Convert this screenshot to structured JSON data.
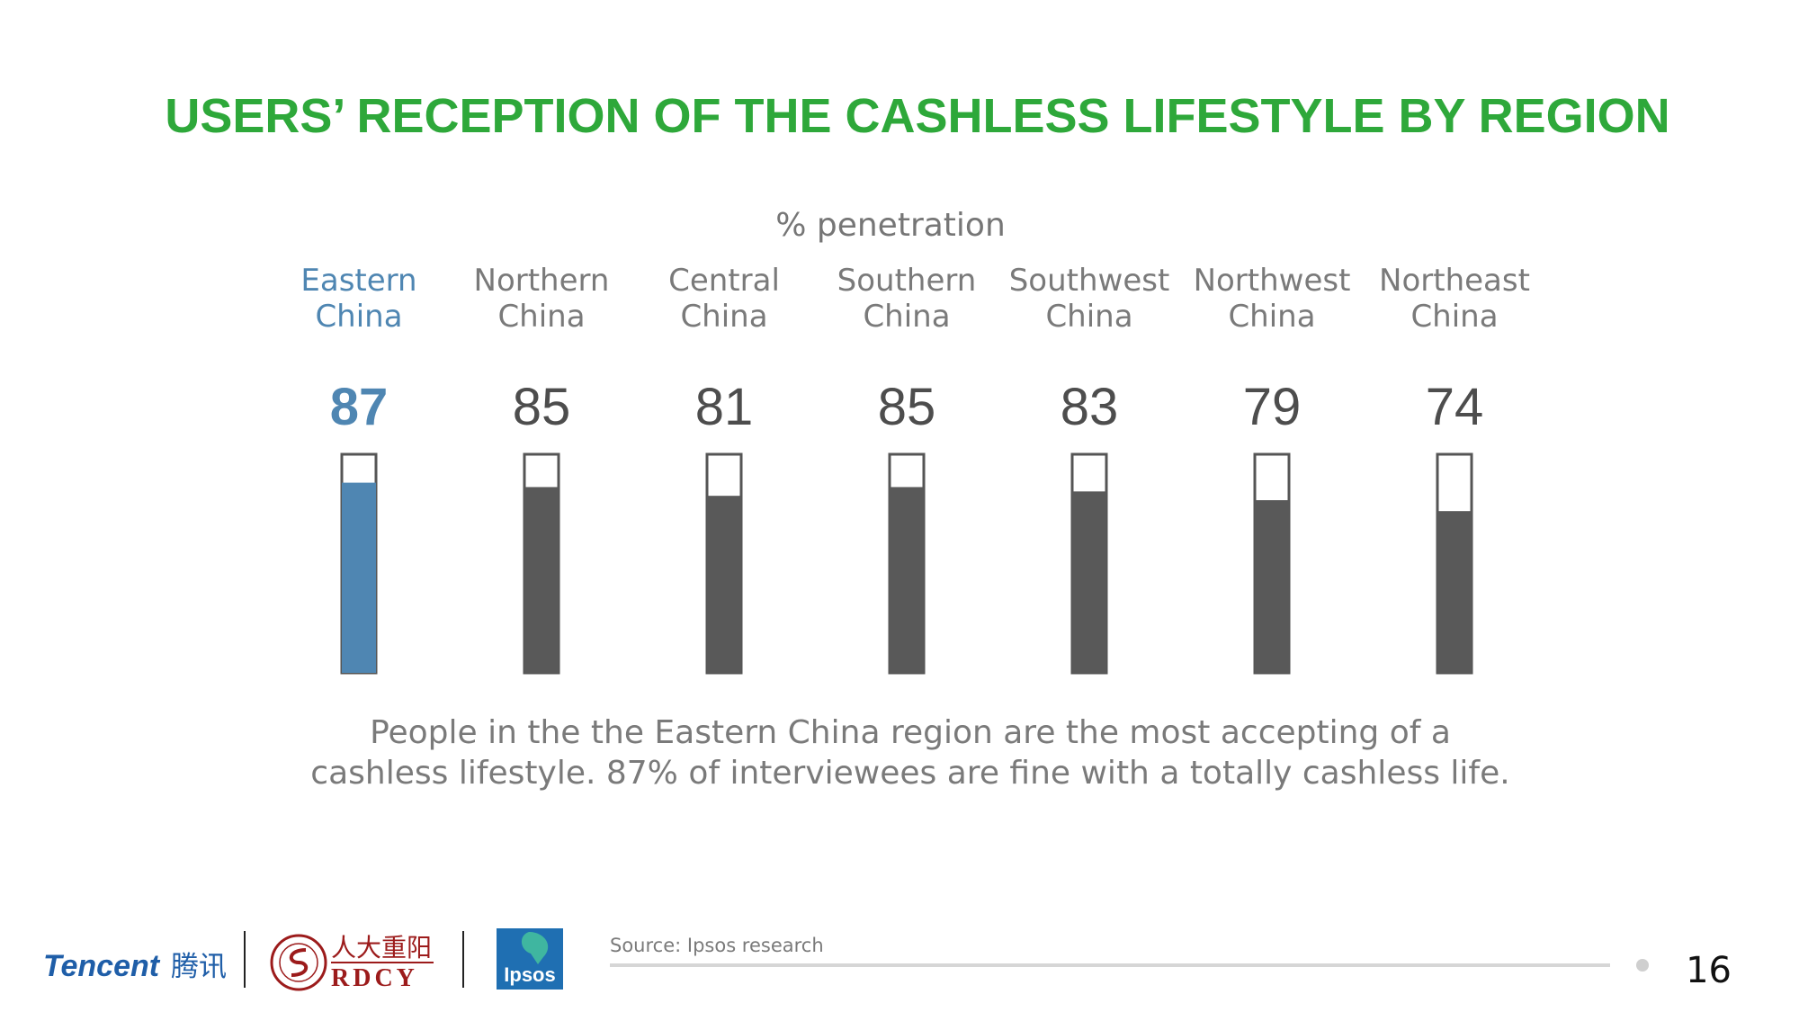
{
  "chart_data": {
    "type": "bar",
    "title": "USERS’ RECEPTION OF THE CASHLESS LIFESTYLE BY REGION",
    "subtitle": "% penetration",
    "categories": [
      [
        "Eastern",
        "China"
      ],
      [
        "Northern",
        "China"
      ],
      [
        "Central",
        "China"
      ],
      [
        "Southern",
        "China"
      ],
      [
        "Southwest",
        "China"
      ],
      [
        "Northwest",
        "China"
      ],
      [
        "Northeast",
        "China"
      ]
    ],
    "values": [
      87,
      85,
      81,
      85,
      83,
      79,
      74
    ],
    "value_labels": [
      "87",
      "85",
      "81",
      "85",
      "83",
      "79",
      "74"
    ],
    "ylim": [
      0,
      100
    ],
    "highlight_index": 0,
    "colors": {
      "highlight": "#4f86b2",
      "default": "#595959",
      "title": "#2ea83a",
      "outline": "#555555"
    },
    "grid": false,
    "legend": "none"
  },
  "caption": {
    "line1": "People in the the Eastern China region are the most accepting of a",
    "line2": "cashless lifestyle. 87% of interviewees are fine with a totally cashless life."
  },
  "footer": {
    "source": "Source: Ipsos research",
    "page_number": "16",
    "logos": {
      "tencent": "Tencent",
      "tencent_cn": "腾讯",
      "rdcy_cn": "人大重阳",
      "rdcy": "RDCY",
      "ipsos": "Ipsos"
    }
  }
}
